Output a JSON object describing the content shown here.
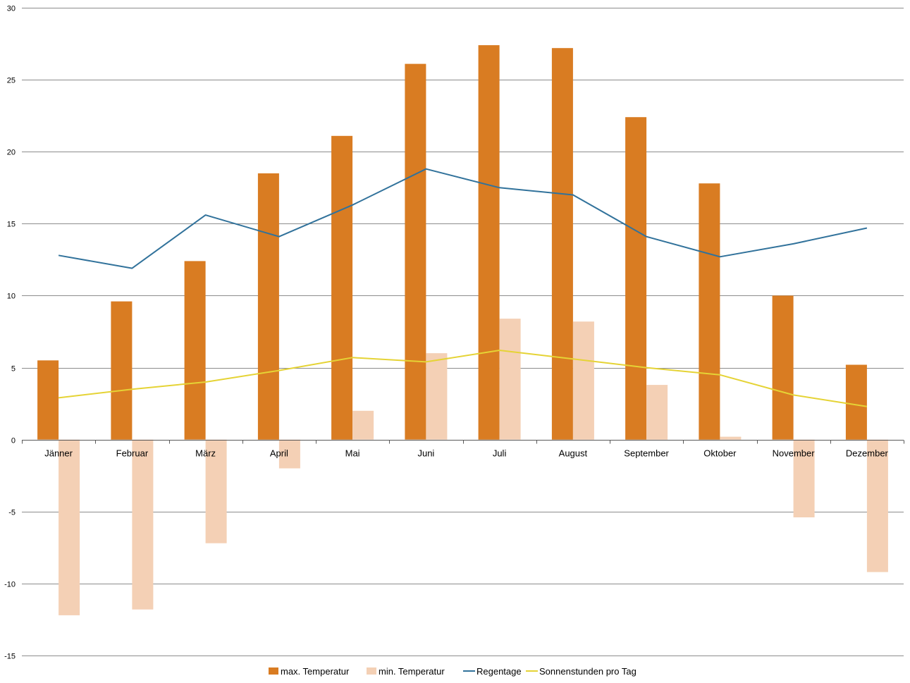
{
  "chart_data": {
    "type": "bar",
    "categories": [
      "Jänner",
      "Februar",
      "März",
      "April",
      "Mai",
      "Juni",
      "Juli",
      "August",
      "September",
      "Oktober",
      "November",
      "Dezember"
    ],
    "ylim": [
      -15,
      30
    ],
    "yticks": [
      -15,
      -10,
      -5,
      0,
      5,
      10,
      15,
      20,
      25,
      30
    ],
    "grid": true,
    "legend_position": "bottom",
    "series": [
      {
        "name": "max. Temperatur",
        "kind": "bar",
        "color": "#d97c22",
        "values": [
          5.5,
          9.6,
          12.4,
          18.5,
          21.1,
          26.1,
          27.4,
          27.2,
          22.4,
          17.8,
          10.0,
          5.2
        ]
      },
      {
        "name": "min. Temperatur",
        "kind": "bar",
        "color": "#f4d0b5",
        "values": [
          -12.2,
          -11.8,
          -7.2,
          -2.0,
          2.0,
          6.0,
          8.4,
          8.2,
          3.8,
          0.2,
          -5.4,
          -9.2
        ]
      },
      {
        "name": "Regentage",
        "kind": "line",
        "color": "#31729b",
        "values": [
          12.8,
          11.9,
          15.6,
          14.1,
          16.3,
          18.8,
          17.5,
          17.0,
          14.1,
          12.7,
          13.6,
          14.7
        ]
      },
      {
        "name": "Sonnenstunden pro Tag",
        "kind": "line",
        "color": "#e5d335",
        "values": [
          2.9,
          3.5,
          4.0,
          4.8,
          5.7,
          5.4,
          6.2,
          5.6,
          5.0,
          4.5,
          3.1,
          2.3
        ]
      }
    ]
  }
}
